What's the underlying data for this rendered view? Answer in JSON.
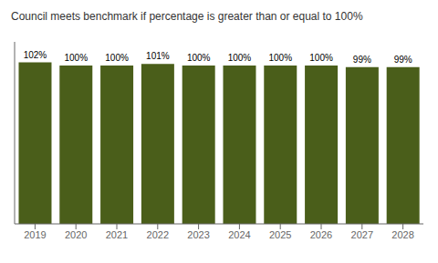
{
  "chart_data": {
    "type": "bar",
    "title": "Council meets benchmark if percentage is greater than or equal to 100%",
    "categories": [
      "2019",
      "2020",
      "2021",
      "2022",
      "2023",
      "2024",
      "2025",
      "2026",
      "2027",
      "2028"
    ],
    "values": [
      102,
      100,
      100,
      101,
      100,
      100,
      100,
      100,
      99,
      99
    ],
    "value_labels": [
      "102%",
      "100%",
      "100%",
      "101%",
      "100%",
      "100%",
      "100%",
      "100%",
      "99%",
      "99%"
    ],
    "color": "#4a5e1a",
    "ylim": [
      0,
      115
    ],
    "yticks": [],
    "grid": false,
    "data_labels": true,
    "tick_labels": "x"
  }
}
